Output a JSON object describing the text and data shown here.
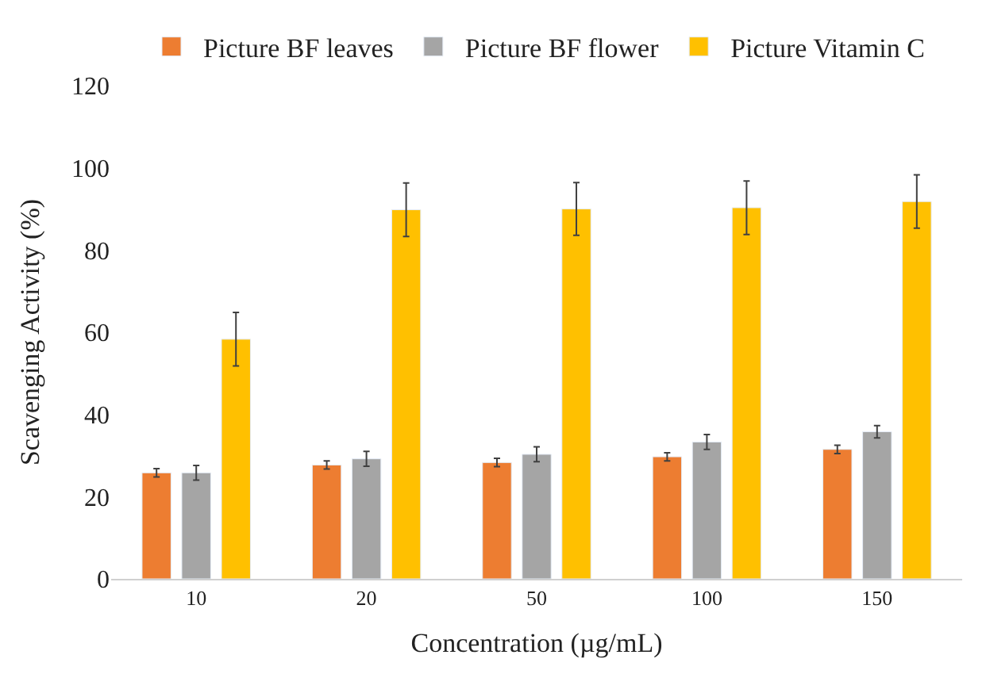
{
  "chart_data": {
    "type": "bar",
    "xlabel": "Concentration (µg/mL)",
    "ylabel": "Scavenging Activity (%)",
    "categories": [
      "10",
      "20",
      "50",
      "100",
      "150"
    ],
    "series": [
      {
        "name": "Picture BF leaves",
        "color": "#ed7d31",
        "values": [
          25.8,
          27.7,
          28.3,
          29.7,
          31.5
        ],
        "errors": [
          1,
          1,
          1,
          1,
          1
        ]
      },
      {
        "name": "Picture BF flower",
        "color": "#a5a5a5",
        "values": [
          25.8,
          29.2,
          30.3,
          33.3,
          35.8
        ],
        "errors": [
          1.8,
          1.8,
          1.8,
          1.8,
          1.5
        ]
      },
      {
        "name": "Picture Vitamin C",
        "color": "#ffc000",
        "values": [
          58.3,
          89.8,
          90,
          90.3,
          91.8
        ],
        "errors": [
          6.5,
          6.5,
          6.4,
          6.5,
          6.5
        ]
      }
    ],
    "ylim": [
      0,
      120
    ],
    "yticks": [
      0,
      20,
      40,
      60,
      80,
      100,
      120
    ],
    "legend": "top"
  }
}
